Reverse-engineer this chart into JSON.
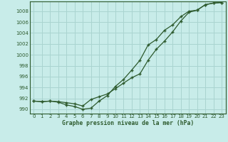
{
  "title": "Graphe pression niveau de la mer (hPa)",
  "bg_color": "#c8ece9",
  "grid_color": "#aad4d0",
  "line_color": "#2d5a2d",
  "xlim": [
    -0.5,
    23.5
  ],
  "ylim": [
    989.2,
    1009.8
  ],
  "yticks": [
    990,
    992,
    994,
    996,
    998,
    1000,
    1002,
    1004,
    1006,
    1008
  ],
  "xticks": [
    0,
    1,
    2,
    3,
    4,
    5,
    6,
    7,
    8,
    9,
    10,
    11,
    12,
    13,
    14,
    15,
    16,
    17,
    18,
    19,
    20,
    21,
    22,
    23
  ],
  "series1_x": [
    0,
    1,
    2,
    3,
    4,
    5,
    6,
    7,
    8,
    9,
    10,
    11,
    12,
    13,
    14,
    15,
    16,
    17,
    18,
    19,
    20,
    21,
    22,
    23
  ],
  "series1_y": [
    991.5,
    991.4,
    991.5,
    991.4,
    991.2,
    991.0,
    990.6,
    991.8,
    992.3,
    992.8,
    993.8,
    994.8,
    995.8,
    996.5,
    999.0,
    1001.0,
    1002.5,
    1004.2,
    1006.2,
    1007.8,
    1008.2,
    1009.2,
    1009.5,
    1009.6
  ],
  "series2_x": [
    0,
    1,
    2,
    3,
    4,
    5,
    6,
    7,
    8,
    9,
    10,
    11,
    12,
    13,
    14,
    15,
    16,
    17,
    18,
    19,
    20,
    21,
    22,
    23
  ],
  "series2_y": [
    991.5,
    991.4,
    991.5,
    991.3,
    990.8,
    990.5,
    990.0,
    990.2,
    991.5,
    992.5,
    994.2,
    995.5,
    997.2,
    999.0,
    1001.8,
    1002.8,
    1004.5,
    1005.5,
    1007.0,
    1008.0,
    1008.2,
    1009.2,
    1009.5,
    1009.6
  ]
}
